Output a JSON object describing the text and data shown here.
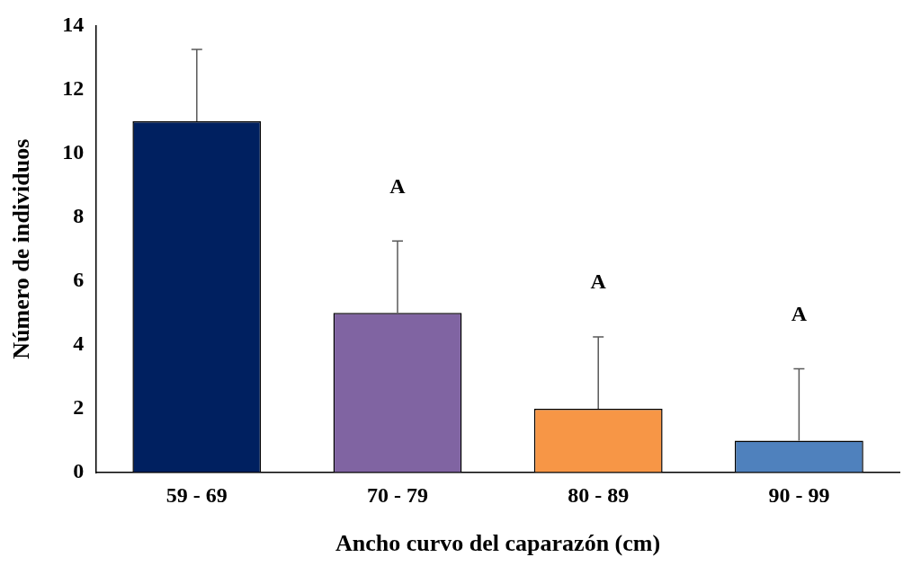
{
  "chart_data": {
    "type": "bar",
    "xlabel": "Ancho curvo del caparazón (cm)",
    "ylabel": "Número de individuos",
    "categories": [
      "59 - 69",
      "70 - 79",
      "80 - 89",
      "90 - 99"
    ],
    "values": [
      11,
      5,
      2,
      1
    ],
    "colors": [
      "#002060",
      "#8064a2",
      "#f79646",
      "#4f81bd"
    ],
    "errors": [
      [
        11,
        13.25
      ],
      [
        5,
        7.25
      ],
      [
        2,
        4.25
      ],
      [
        1,
        3.25
      ]
    ],
    "ylim": [
      0,
      14
    ],
    "yticks": [
      0,
      2,
      4,
      6,
      8,
      10,
      12,
      14
    ],
    "grid": false,
    "legend": false,
    "annotations": [
      "A",
      "A",
      "A"
    ]
  }
}
